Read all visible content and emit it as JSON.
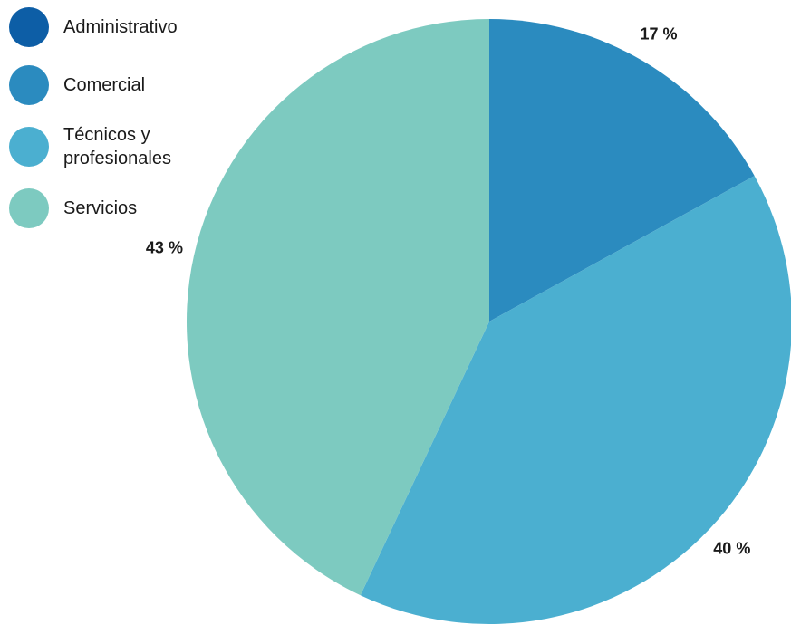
{
  "chart_data": {
    "type": "pie",
    "categories": [
      "Administrativo",
      "Comercial",
      "Técnicos y profesionales",
      "Servicios"
    ],
    "values": [
      0,
      17,
      40,
      43
    ],
    "value_labels": [
      null,
      "17 %",
      "40 %",
      "43 %"
    ],
    "colors": [
      "#0d5ea6",
      "#2b8bbf",
      "#4bafd0",
      "#7dcac0"
    ],
    "legend": "top-left"
  }
}
